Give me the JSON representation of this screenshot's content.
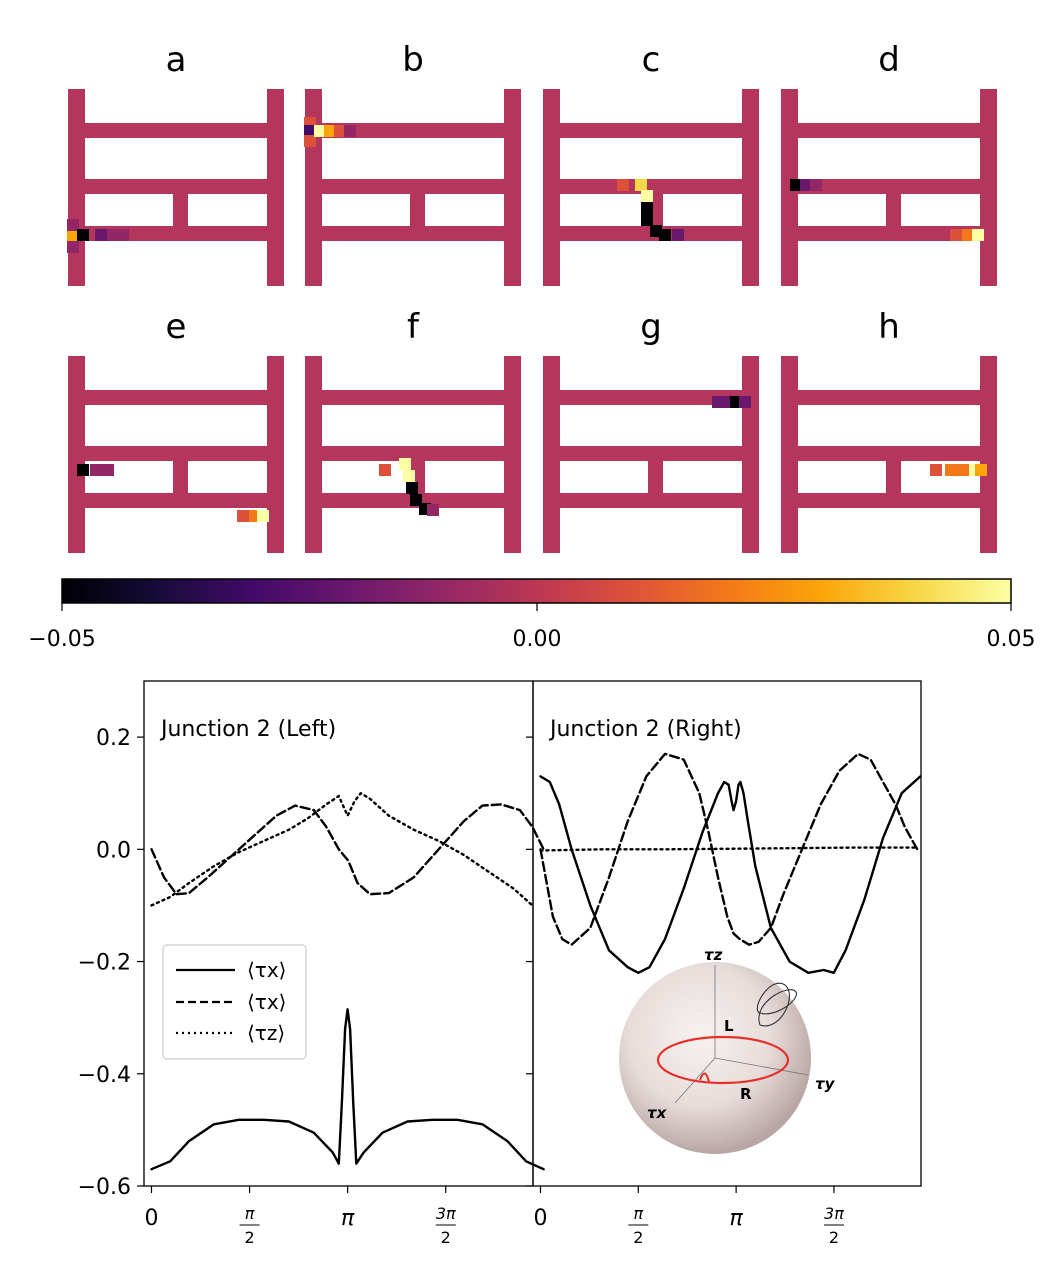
{
  "figure": {
    "panels": [
      "a",
      "b",
      "c",
      "d",
      "e",
      "f",
      "g",
      "h"
    ],
    "colorbar": {
      "colormap": "inferno",
      "range": [
        -0.05,
        0.05
      ],
      "ticks": [
        "−0.05",
        "0.00",
        "0.05"
      ]
    },
    "lattice_color": "#b5365c"
  },
  "chart_data": [
    {
      "type": "line",
      "annotation": "Junction 2 (Left)",
      "xticks": [
        "0",
        "π/2",
        "π",
        "3π/2"
      ],
      "yticks": [
        "0.2",
        "0.0",
        "−0.2",
        "−0.4",
        "−0.6"
      ],
      "xlim": [
        -0.12,
        6.11
      ],
      "ylim": [
        -0.6,
        0.3
      ],
      "legend": {
        "placement": "center-left",
        "entries": [
          "⟨τx⟩",
          "⟨τx⟩",
          "⟨τz⟩"
        ]
      },
      "series": [
        {
          "style": "solid",
          "x": [
            0,
            0.3,
            0.6,
            1.0,
            1.4,
            1.8,
            2.2,
            2.6,
            2.9,
            3.0,
            3.05,
            3.1,
            3.14,
            3.18,
            3.23,
            3.28,
            3.4,
            3.7,
            4.1,
            4.5,
            4.9,
            5.3,
            5.7,
            6.0,
            6.28
          ],
          "y": [
            -0.57,
            -0.556,
            -0.52,
            -0.49,
            -0.482,
            -0.482,
            -0.485,
            -0.505,
            -0.54,
            -0.56,
            -0.45,
            -0.32,
            -0.285,
            -0.32,
            -0.45,
            -0.56,
            -0.54,
            -0.505,
            -0.485,
            -0.482,
            -0.482,
            -0.49,
            -0.52,
            -0.556,
            -0.57
          ]
        },
        {
          "style": "dashed",
          "x": [
            0,
            0.2,
            0.4,
            0.6,
            0.9,
            1.3,
            1.7,
            2.0,
            2.3,
            2.6,
            2.8,
            3.0,
            3.15,
            3.3,
            3.5,
            3.8,
            4.2,
            4.6,
            5.0,
            5.3,
            5.6,
            5.9,
            6.1,
            6.28
          ],
          "y": [
            0.0,
            -0.05,
            -0.08,
            -0.078,
            -0.05,
            -0.01,
            0.03,
            0.06,
            0.078,
            0.07,
            0.04,
            0.0,
            -0.02,
            -0.06,
            -0.08,
            -0.078,
            -0.05,
            0.0,
            0.05,
            0.078,
            0.08,
            0.07,
            0.04,
            0.0
          ]
        },
        {
          "style": "dotted",
          "x": [
            0,
            0.3,
            0.6,
            1.0,
            1.4,
            1.8,
            2.2,
            2.5,
            2.8,
            3.0,
            3.14,
            3.25,
            3.35,
            3.5,
            3.8,
            4.2,
            4.6,
            5.0,
            5.4,
            5.8,
            6.1
          ],
          "y": [
            -0.1,
            -0.085,
            -0.06,
            -0.03,
            -0.005,
            0.015,
            0.035,
            0.055,
            0.08,
            0.095,
            0.06,
            0.085,
            0.1,
            0.09,
            0.06,
            0.035,
            0.015,
            -0.01,
            -0.04,
            -0.07,
            -0.1
          ]
        }
      ]
    },
    {
      "type": "line",
      "annotation": "Junction 2 (Right)",
      "xticks": [
        "0",
        "π/2",
        "π",
        "3π/2"
      ],
      "xlim": [
        -0.12,
        6.11
      ],
      "ylim": [
        -0.6,
        0.3
      ],
      "inset": {
        "description_labels": [
          "τz",
          "τy",
          "τx",
          "L",
          "R"
        ]
      },
      "series": [
        {
          "style": "solid",
          "x": [
            0,
            0.15,
            0.3,
            0.5,
            0.8,
            1.1,
            1.4,
            1.57,
            1.75,
            2.0,
            2.3,
            2.6,
            2.85,
            2.95,
            3.02,
            3.07,
            3.1,
            3.14,
            3.18,
            3.21,
            3.26,
            3.33,
            3.45,
            3.7,
            4.0,
            4.3,
            4.55,
            4.71,
            4.9,
            5.2,
            5.5,
            5.8,
            6.0,
            6.1
          ],
          "y": [
            0.13,
            0.12,
            0.08,
            0.0,
            -0.1,
            -0.18,
            -0.21,
            -0.22,
            -0.21,
            -0.16,
            -0.07,
            0.03,
            0.1,
            0.12,
            0.115,
            0.085,
            0.07,
            0.085,
            0.115,
            0.12,
            0.1,
            0.05,
            -0.03,
            -0.14,
            -0.2,
            -0.22,
            -0.215,
            -0.22,
            -0.18,
            -0.09,
            0.02,
            0.1,
            0.12,
            0.13
          ]
        },
        {
          "style": "dashed",
          "x": [
            0,
            0.2,
            0.35,
            0.5,
            0.8,
            1.1,
            1.4,
            1.7,
            2.0,
            2.3,
            2.55,
            2.7,
            2.85,
            3.0,
            3.1,
            3.2,
            3.35,
            3.5,
            3.7,
            3.9,
            4.2,
            4.5,
            4.8,
            5.1,
            5.3,
            5.5,
            5.7,
            5.85,
            6.0,
            6.05
          ],
          "y": [
            0.0,
            -0.12,
            -0.16,
            -0.17,
            -0.14,
            -0.05,
            0.05,
            0.13,
            0.17,
            0.16,
            0.1,
            0.03,
            -0.05,
            -0.12,
            -0.15,
            -0.16,
            -0.17,
            -0.165,
            -0.14,
            -0.08,
            0.0,
            0.08,
            0.14,
            0.17,
            0.16,
            0.12,
            0.08,
            0.04,
            0.01,
            0.0
          ]
        },
        {
          "style": "dotted",
          "x": [
            0,
            1.0,
            2.0,
            3.0,
            4.0,
            5.0,
            6.05
          ],
          "y": [
            -0.002,
            0.0,
            0.0,
            0.001,
            0.002,
            0.003,
            0.003
          ]
        }
      ]
    }
  ]
}
